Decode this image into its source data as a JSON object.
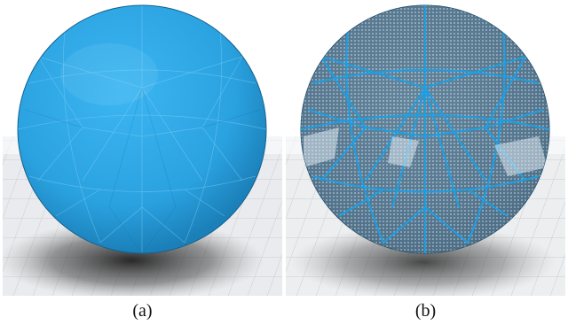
{
  "figure": {
    "panels": [
      {
        "id": "a",
        "caption": "(a)",
        "render_style": "solid-shaded",
        "sphere_color": "#2da8e8"
      },
      {
        "id": "b",
        "caption": "(b)",
        "render_style": "wireframe-transparent",
        "sphere_color": "#2f7fb0"
      }
    ],
    "colors": {
      "background": "#ffffff",
      "floor_grid": "#c9ccd0",
      "shadow": "#2a2a2a"
    }
  }
}
